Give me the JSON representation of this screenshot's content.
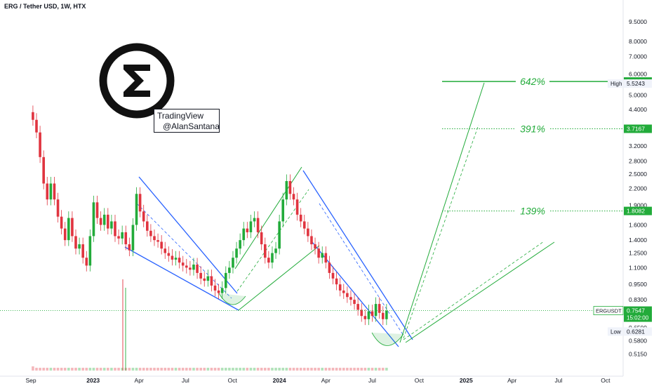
{
  "header": {
    "title": "ERG / Tether USD, 1W, HTX"
  },
  "watermark": {
    "line1": "TradingView",
    "line2": "@AlanSantana",
    "logo": "ergo-sigma-logo"
  },
  "colors": {
    "up": "#22ab3a",
    "down": "#e0343f",
    "bg": "#ffffff",
    "grid": "#f0f3fa",
    "axis_text": "#131722",
    "wedge": "#2962ff",
    "target": "#22ab3a"
  },
  "chart_data": {
    "type": "candlestick",
    "title": "ERG / Tether USD, 1W, HTX",
    "xlabel": "",
    "ylabel": "",
    "scale": "log",
    "ylim": [
      0.5,
      9.5
    ],
    "grid": false,
    "x_ticks": [
      "Sep",
      "2023",
      "Apr",
      "Jul",
      "Oct",
      "2024",
      "Apr",
      "Jul",
      "Oct",
      "2025",
      "Apr",
      "Jul",
      "Oct"
    ],
    "y_ticks": [
      "9.5000",
      "8.0000",
      "7.0000",
      "6.0000",
      "5.0000",
      "4.4000",
      "3.2000",
      "2.8000",
      "2.5000",
      "2.2000",
      "1.9000",
      "1.6000",
      "1.4000",
      "1.2500",
      "1.1000",
      "0.9500",
      "0.8300",
      "0.6500",
      "0.5800",
      "0.5150"
    ],
    "price_labels": [
      {
        "name": "target-642",
        "text": "5.6261",
        "value": 5.6261
      },
      {
        "name": "high",
        "label": "High",
        "text": "5.5243",
        "value": 5.5243
      },
      {
        "name": "target-391",
        "text": "3.7167",
        "value": 3.7167
      },
      {
        "name": "target-139",
        "text": "1.8082",
        "value": 1.8082
      },
      {
        "name": "current",
        "label": "ERGUSDT",
        "text": "0.7547",
        "countdown": "15:02:00",
        "value": 0.7547
      },
      {
        "name": "low",
        "label": "Low",
        "text": "0.6281",
        "value": 0.6281
      }
    ],
    "targets": [
      {
        "label": "642%",
        "value": 5.6261,
        "style": "solid"
      },
      {
        "label": "391%",
        "value": 3.7167,
        "style": "dotted"
      },
      {
        "label": "139%",
        "value": 1.8082,
        "style": "dotted"
      }
    ],
    "weeks": {
      "start": "2022-09-05",
      "close": [
        4.02,
        3.6,
        2.9,
        2.3,
        2.0,
        2.3,
        2.0,
        1.72,
        1.55,
        1.4,
        1.7,
        1.45,
        1.3,
        1.35,
        1.2,
        1.12,
        1.45,
        1.95,
        1.7,
        1.6,
        1.75,
        1.55,
        1.65,
        1.45,
        1.42,
        1.5,
        1.35,
        1.28,
        1.6,
        2.1,
        1.8,
        1.65,
        1.52,
        1.45,
        1.4,
        1.38,
        1.3,
        1.25,
        1.22,
        1.18,
        1.2,
        1.15,
        1.12,
        1.1,
        1.08,
        1.13,
        1.05,
        1.0,
        0.98,
        1.02,
        0.94,
        0.9,
        0.88,
        0.92,
        1.05,
        1.1,
        1.2,
        1.3,
        1.4,
        1.55,
        1.5,
        1.65,
        1.7,
        1.5,
        1.35,
        1.2,
        1.15,
        1.25,
        1.3,
        1.65,
        2.0,
        2.35,
        2.1,
        2.0,
        1.75,
        1.65,
        1.55,
        1.45,
        1.35,
        1.3,
        1.2,
        1.25,
        1.15,
        1.05,
        1.0,
        0.95,
        0.9,
        0.88,
        0.85,
        0.83,
        0.8,
        0.76,
        0.72,
        0.7,
        0.75,
        0.72,
        0.8,
        0.74,
        0.7,
        0.7547
      ],
      "volume": [
        0.15,
        0.1,
        0.1,
        0.1,
        0.1,
        0.1,
        0.1,
        0.1,
        0.1,
        0.1,
        0.1,
        0.1,
        0.1,
        0.1,
        0.1,
        0.1,
        0.1,
        0.1,
        0.1,
        0.1,
        0.1,
        0.1,
        0.1,
        0.1,
        0.1,
        0.1,
        0.1,
        0.1,
        0.1,
        0.1,
        0.1,
        0.1,
        0.1,
        0.1,
        0.1,
        0.1,
        0.1,
        0.1,
        0.1,
        0.1,
        0.1,
        0.1,
        0.1,
        0.1,
        0.1,
        0.1,
        0.1,
        0.1,
        0.1,
        0.1,
        0.1,
        0.1,
        0.1,
        0.1,
        0.1,
        0.1,
        0.1,
        0.1,
        0.1,
        0.1,
        0.1,
        0.1,
        0.1,
        0.1,
        0.1,
        0.1,
        0.1,
        0.1,
        0.1,
        0.1,
        0.1,
        0.1,
        0.1,
        0.1,
        0.1,
        0.1,
        0.1,
        0.1,
        0.1,
        0.1,
        0.1,
        0.1,
        0.1,
        0.1,
        0.1,
        0.1,
        0.1,
        0.1,
        0.1,
        0.1,
        0.1,
        0.1,
        0.1,
        0.1,
        0.1,
        0.1,
        0.1,
        0.1,
        0.1,
        0.1
      ]
    }
  }
}
